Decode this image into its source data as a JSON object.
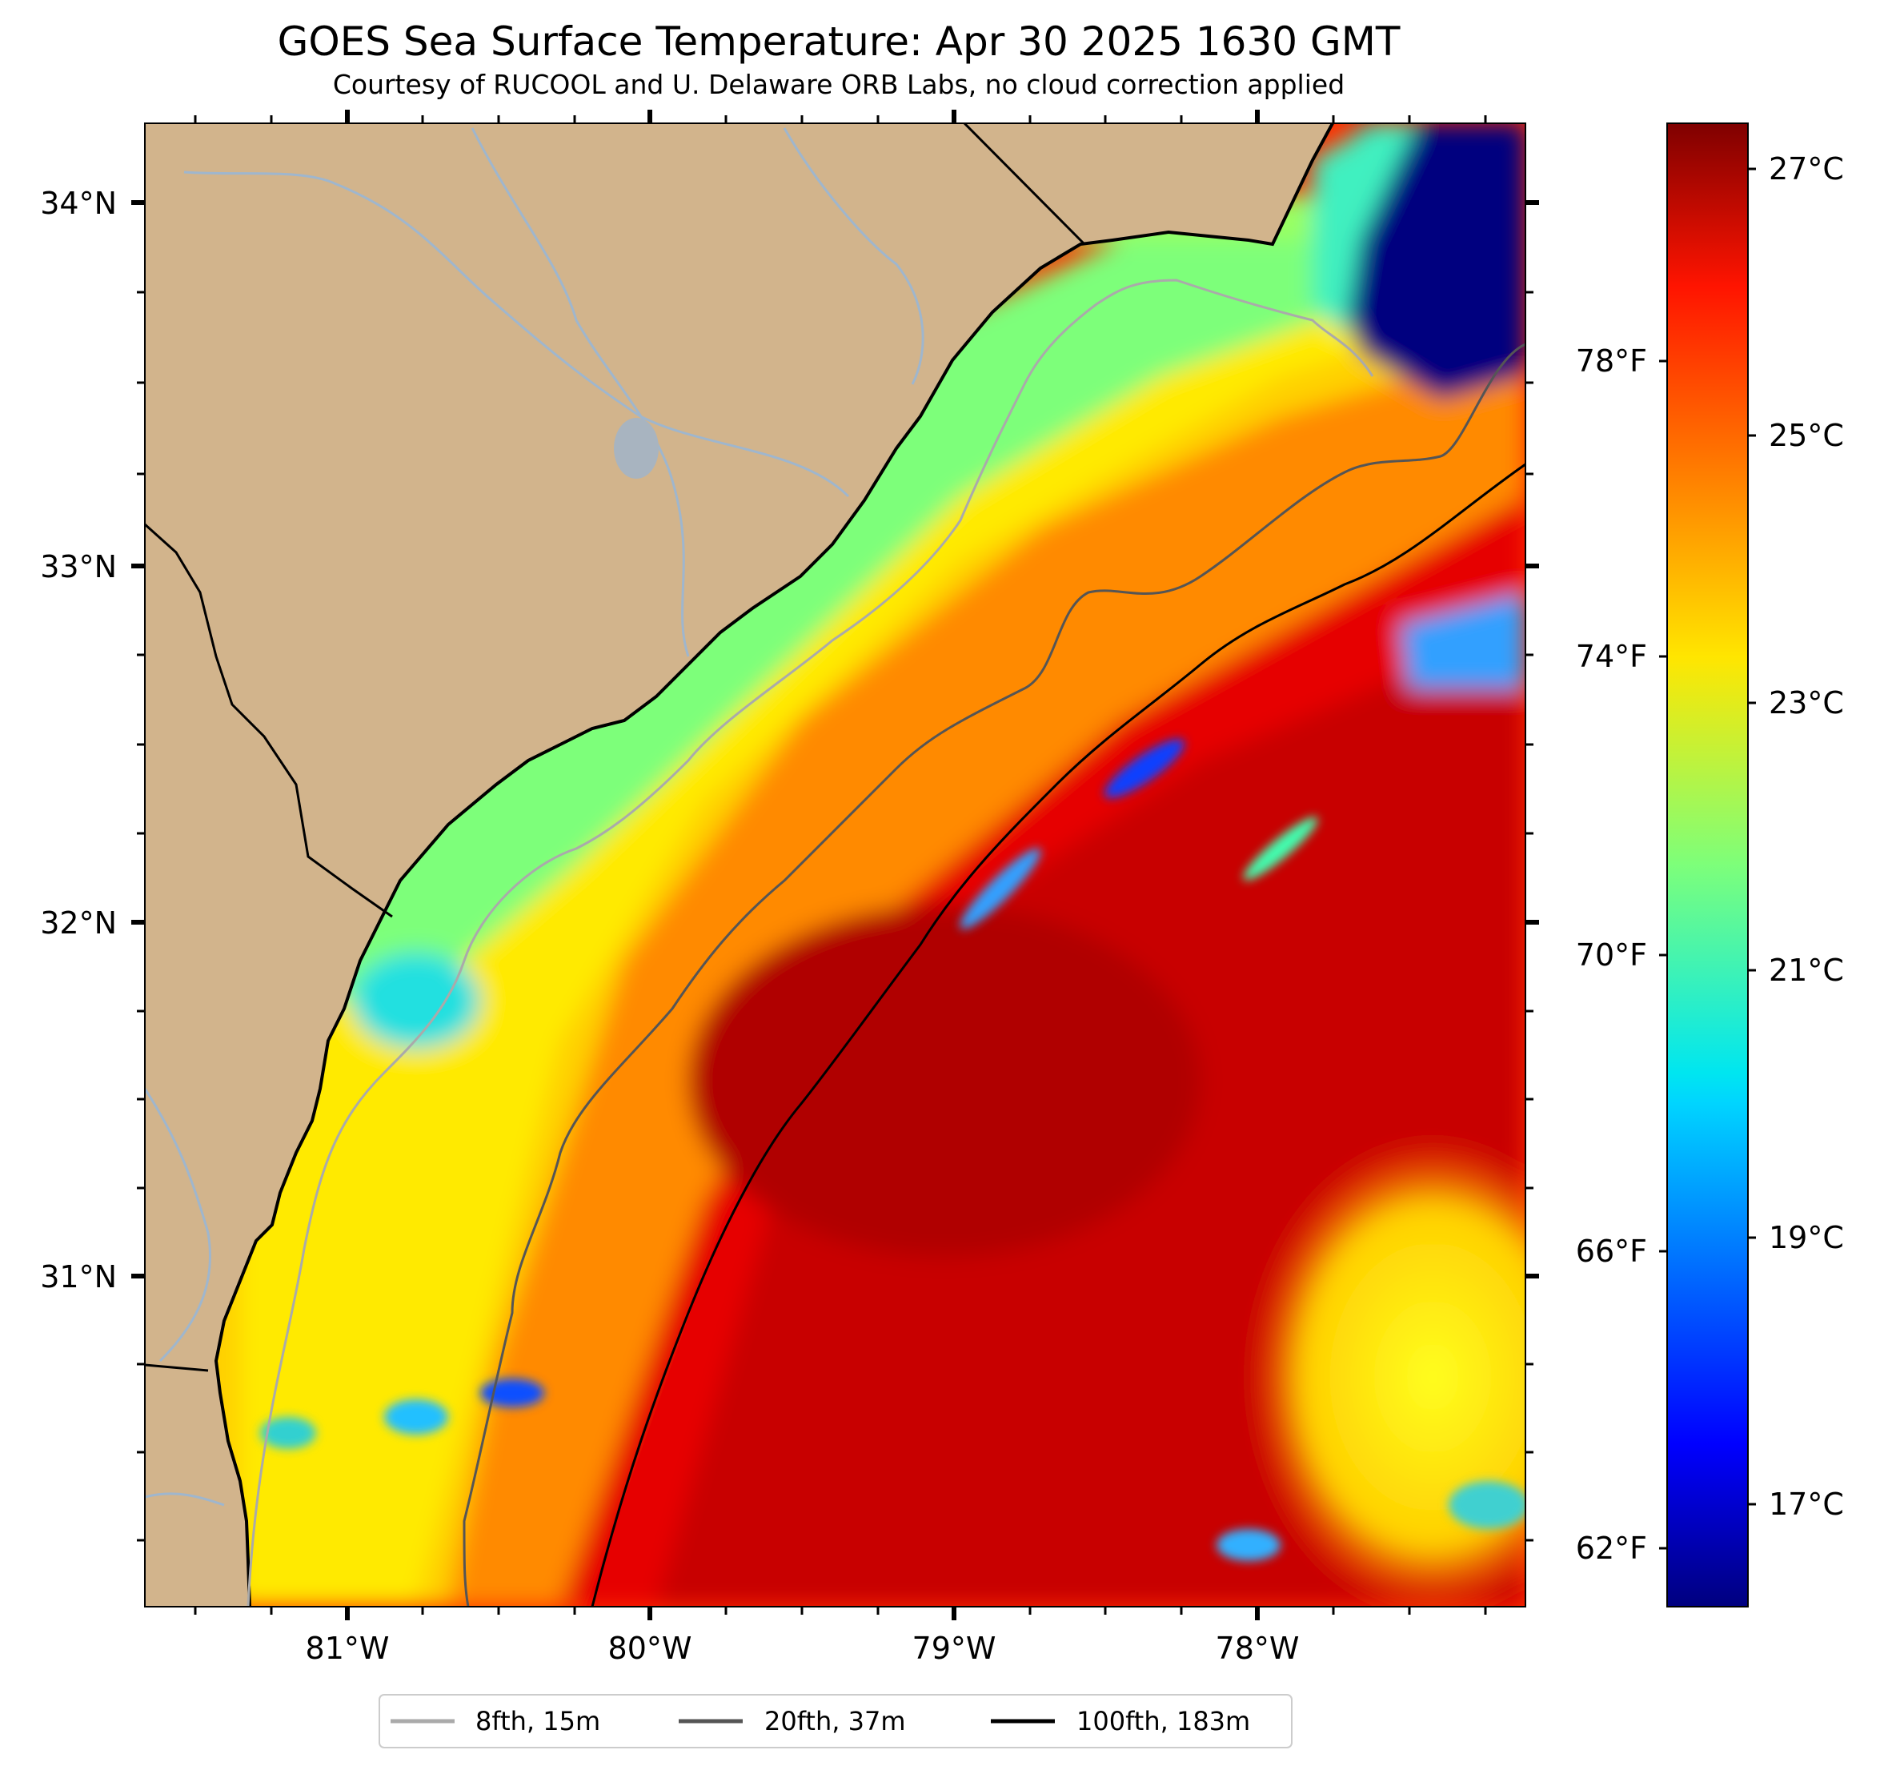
{
  "title": "GOES Sea Surface Temperature: Apr 30 2025 1630 GMT",
  "subtitle": "Courtesy of RUCOOL and U. Delaware ORB Labs, no cloud correction applied",
  "map": {
    "lon_labels": [
      "81°W",
      "80°W",
      "79°W",
      "78°W"
    ],
    "lat_labels": [
      "34°N",
      "33°N",
      "32°N",
      "31°N"
    ],
    "land_color": "#d2b48c",
    "river_color": "#9fb6cd",
    "coast_color": "#000000"
  },
  "colorbar": {
    "celsius_labels": [
      "27°C",
      "25°C",
      "23°C",
      "21°C",
      "19°C",
      "17°C"
    ],
    "fahrenheit_labels": [
      "78°F",
      "74°F",
      "70°F",
      "66°F",
      "62°F"
    ],
    "colormap": "jet",
    "range_c": [
      16.2,
      27.4
    ]
  },
  "legend": {
    "items": [
      {
        "label": "8fth, 15m",
        "color": "#aaaaaa"
      },
      {
        "label": "20fth, 37m",
        "color": "#555555"
      },
      {
        "label": "100fth, 183m",
        "color": "#000000"
      }
    ]
  }
}
